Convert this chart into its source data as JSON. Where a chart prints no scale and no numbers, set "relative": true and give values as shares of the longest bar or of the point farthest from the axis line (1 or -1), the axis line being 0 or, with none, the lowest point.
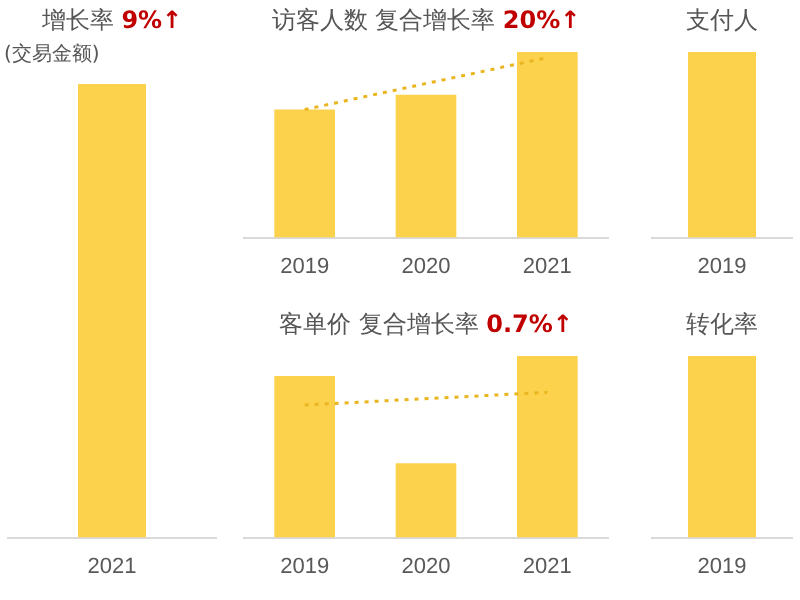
{
  "chart_data": [
    {
      "type": "bar",
      "title": "增长率 9%↑",
      "subtitle": "(交易金额)",
      "relative": true,
      "categories": [
        "2021"
      ],
      "legend": false,
      "grid": false,
      "series": [
        {
          "color": "#fcd24c",
          "values": [
            1
          ]
        }
      ]
    },
    {
      "type": "bar",
      "title": "访客人数 复合增长率 20%↑",
      "relative": true,
      "categories": [
        "2019",
        "2020",
        "2021"
      ],
      "legend": false,
      "grid": false,
      "series": [
        {
          "color": "#fcd24c",
          "values": [
            0.69,
            0.77,
            1
          ]
        },
        {
          "type": "line",
          "color": "#e9b521",
          "line_style": "dotted",
          "marker": "none",
          "values": [
            0.69,
            null,
            0.97
          ]
        }
      ]
    },
    {
      "type": "bar",
      "title": "支付人",
      "relative": true,
      "categories": [
        "2019"
      ],
      "legend": false,
      "grid": false,
      "series": [
        {
          "color": "#fcd24c",
          "values": [
            1
          ]
        }
      ]
    },
    {
      "type": "bar",
      "title": "客单价 复合增长率 0.7%↑",
      "relative": true,
      "categories": [
        "2019",
        "2020",
        "2021"
      ],
      "legend": false,
      "grid": false,
      "series": [
        {
          "color": "#fcd24c",
          "values": [
            0.89,
            0.41,
            1
          ]
        },
        {
          "type": "line",
          "color": "#e9b521",
          "line_style": "dotted",
          "marker": "none",
          "values": [
            0.73,
            null,
            0.8
          ]
        }
      ]
    },
    {
      "type": "bar",
      "title": "转化率",
      "relative": true,
      "categories": [
        "2019"
      ],
      "legend": false,
      "grid": false,
      "series": [
        {
          "color": "#fcd24c",
          "values": [
            1
          ]
        }
      ]
    }
  ]
}
